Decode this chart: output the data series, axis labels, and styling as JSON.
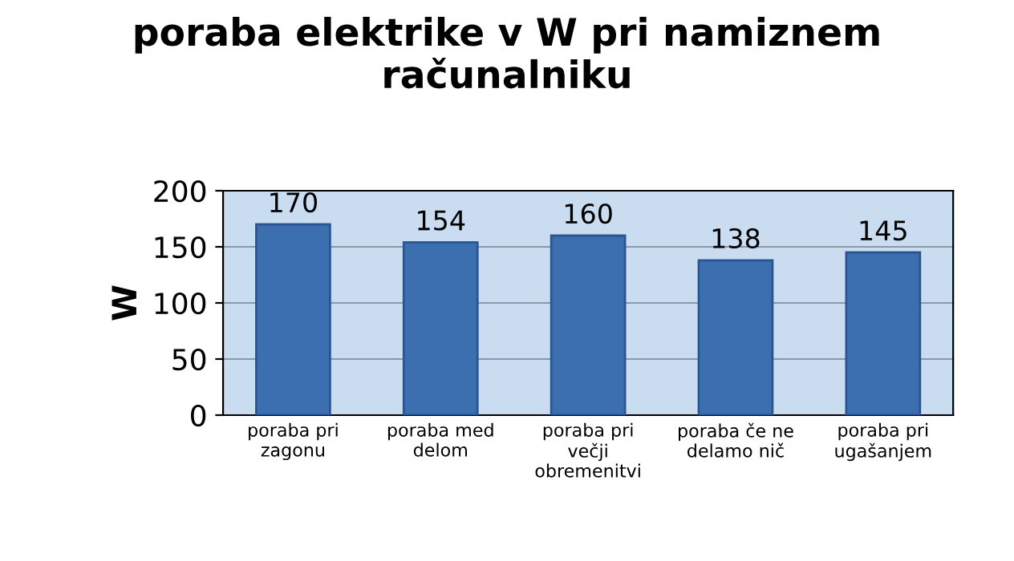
{
  "chart_data": {
    "type": "bar",
    "title": "poraba elektrike v W pri namiznem\nračunalniku",
    "ylabel": "W",
    "categories": [
      "poraba pri\nzagonu",
      "poraba med\ndelom",
      "poraba pri\nvečji\nobremenitvi",
      "poraba če ne\ndelamo nič",
      "poraba pri\nugašanjem"
    ],
    "values": [
      170,
      154,
      160,
      138,
      145
    ],
    "color": "#3c6fb0",
    "ylim": [
      0,
      200
    ],
    "yticks": [
      0,
      50,
      100,
      150,
      200
    ],
    "grid": "y",
    "data_labels": true
  }
}
